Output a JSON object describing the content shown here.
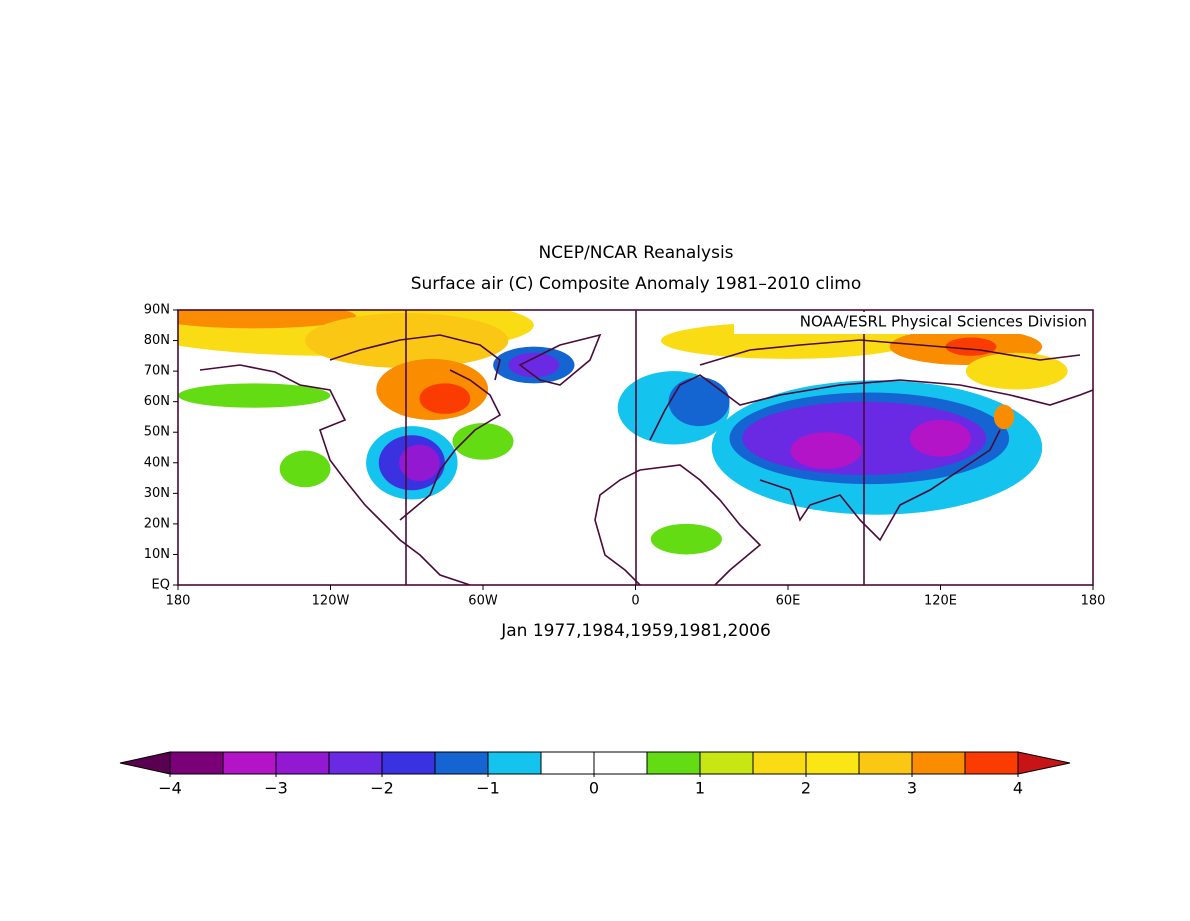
{
  "chart_data": {
    "type": "map",
    "title": "NCEP/NCAR Reanalysis",
    "subtitle": "Surface air (C) Composite Anomaly 1981–2010 climo",
    "credit": "NOAA/ESRL Physical Sciences Division",
    "caption": "Jan 1977,1984,1959,1981,2006",
    "xlim": [
      -180,
      180
    ],
    "xticks": [
      {
        "value": -180,
        "label": "180"
      },
      {
        "value": -120,
        "label": "120W"
      },
      {
        "value": -60,
        "label": "60W"
      },
      0,
      {
        "value": 60,
        "label": "60E"
      },
      {
        "value": 120,
        "label": "120E"
      },
      {
        "value": 180,
        "label": "180"
      }
    ],
    "ylim": [
      0,
      90
    ],
    "yticks": [
      {
        "value": 0,
        "label": "EQ"
      },
      {
        "value": 10,
        "label": "10N"
      },
      {
        "value": 20,
        "label": "20N"
      },
      {
        "value": 30,
        "label": "30N"
      },
      {
        "value": 40,
        "label": "40N"
      },
      {
        "value": 50,
        "label": "50N"
      },
      {
        "value": 60,
        "label": "60N"
      },
      {
        "value": 70,
        "label": "70N"
      },
      {
        "value": 80,
        "label": "80N"
      },
      {
        "value": 90,
        "label": "90N"
      }
    ],
    "colorbar": {
      "levels": [
        -4,
        -3.5,
        -3,
        -2.5,
        -2,
        -1.5,
        -1,
        -0.5,
        0,
        0.5,
        1,
        1.5,
        2,
        2.5,
        3,
        3.5,
        4
      ],
      "colors": [
        "#7a0078",
        "#b414c8",
        "#9218d2",
        "#6a2ae4",
        "#3a32e0",
        "#1464d2",
        "#14c3ee",
        "#ffffff",
        "#ffffff",
        "#64dc14",
        "#c8e614",
        "#fadc14",
        "#fae614",
        "#fac814",
        "#fa8c00",
        "#fa3c00"
      ],
      "under_color": "#5a0050",
      "over_color": "#c81414",
      "ticks": [
        {
          "value": -4,
          "label": "−4"
        },
        {
          "value": -3,
          "label": "−3"
        },
        {
          "value": -2,
          "label": "−2"
        },
        {
          "value": -1,
          "label": "−1"
        },
        0,
        1,
        2,
        3,
        4
      ]
    }
  }
}
